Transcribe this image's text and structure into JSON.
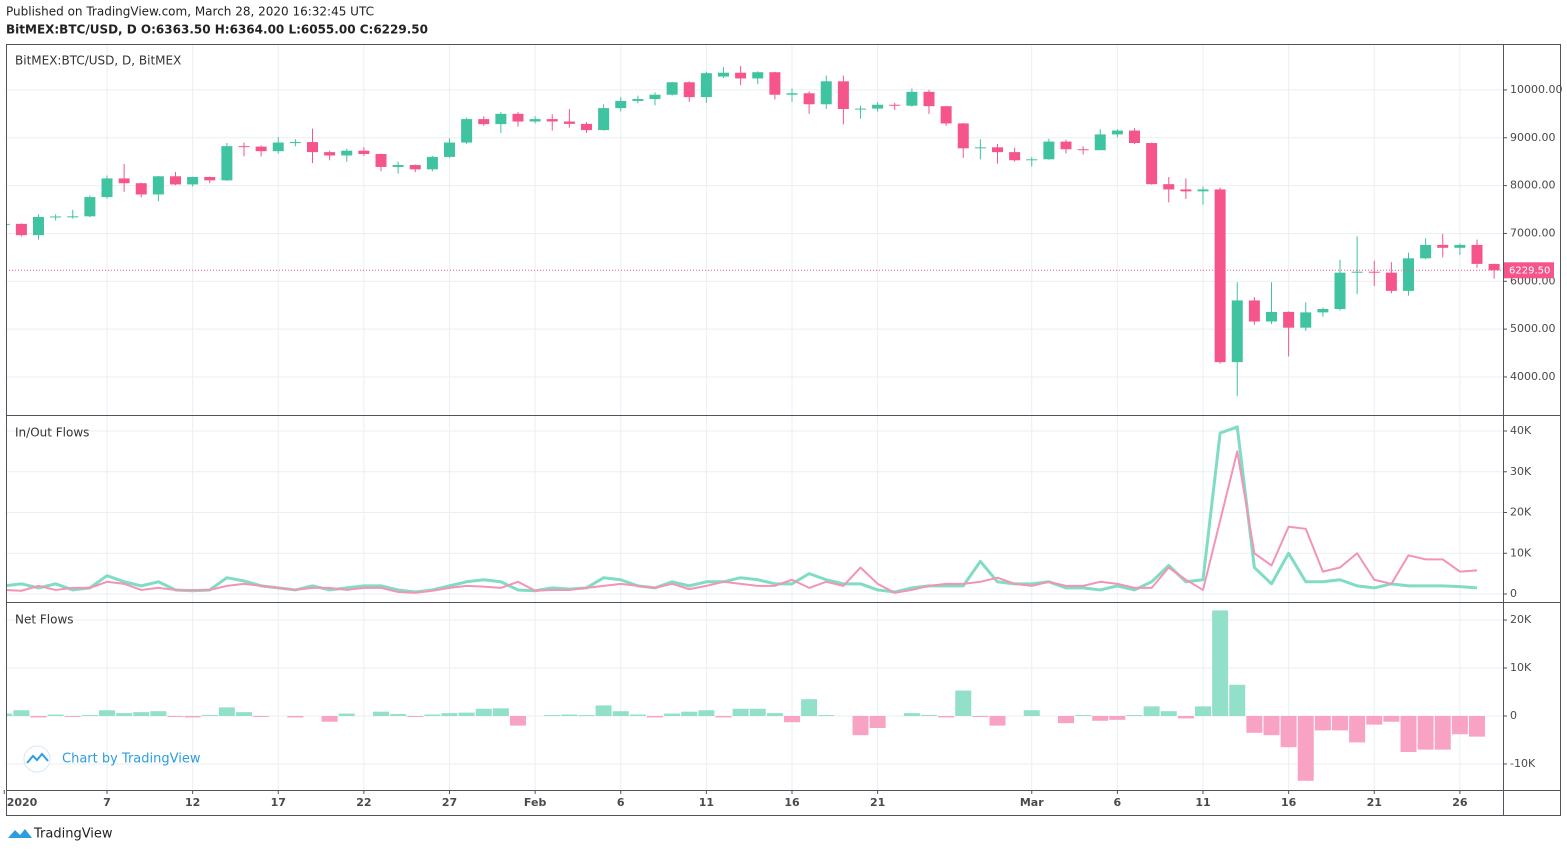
{
  "header": {
    "published": "Published on TradingView.com, March 28, 2020 16:32:45 UTC",
    "symbol_line": "BitMEX:BTC/USD, D  O:6363.50 H:6364.00 L:6055.00 C:6229.50"
  },
  "branding": {
    "chart_by": "Chart by TradingView",
    "footer": "TradingView"
  },
  "chart_data": [
    {
      "type": "candlestick",
      "title": "BitMEX:BTC/USD, D, BitMEX",
      "up_color": "#3fc3a0",
      "down_color": "#f5558a",
      "x": [
        "2020-01-01",
        "2020-01-02",
        "2020-01-03",
        "2020-01-04",
        "2020-01-05",
        "2020-01-06",
        "2020-01-07",
        "2020-01-08",
        "2020-01-09",
        "2020-01-10",
        "2020-01-11",
        "2020-01-12",
        "2020-01-13",
        "2020-01-14",
        "2020-01-15",
        "2020-01-16",
        "2020-01-17",
        "2020-01-18",
        "2020-01-19",
        "2020-01-20",
        "2020-01-21",
        "2020-01-22",
        "2020-01-23",
        "2020-01-24",
        "2020-01-25",
        "2020-01-26",
        "2020-01-27",
        "2020-01-28",
        "2020-01-29",
        "2020-01-30",
        "2020-01-31",
        "2020-02-01",
        "2020-02-02",
        "2020-02-03",
        "2020-02-04",
        "2020-02-05",
        "2020-02-06",
        "2020-02-07",
        "2020-02-08",
        "2020-02-09",
        "2020-02-10",
        "2020-02-11",
        "2020-02-12",
        "2020-02-13",
        "2020-02-14",
        "2020-02-15",
        "2020-02-16",
        "2020-02-17",
        "2020-02-18",
        "2020-02-19",
        "2020-02-20",
        "2020-02-21",
        "2020-02-22",
        "2020-02-23",
        "2020-02-24",
        "2020-02-25",
        "2020-02-26",
        "2020-02-27",
        "2020-02-28",
        "2020-02-29",
        "2020-03-01",
        "2020-03-02",
        "2020-03-03",
        "2020-03-04",
        "2020-03-05",
        "2020-03-06",
        "2020-03-07",
        "2020-03-08",
        "2020-03-09",
        "2020-03-10",
        "2020-03-11",
        "2020-03-12",
        "2020-03-13",
        "2020-03-14",
        "2020-03-15",
        "2020-03-16",
        "2020-03-17",
        "2020-03-18",
        "2020-03-19",
        "2020-03-20",
        "2020-03-21",
        "2020-03-22",
        "2020-03-23",
        "2020-03-24",
        "2020-03-25",
        "2020-03-26",
        "2020-03-27",
        "2020-03-28"
      ],
      "open": [
        7195,
        7200,
        6965,
        7345,
        7355,
        7358,
        7760,
        8150,
        8050,
        7815,
        8195,
        8025,
        8180,
        8110,
        8825,
        8815,
        8720,
        8900,
        8910,
        8700,
        8630,
        8730,
        8660,
        8390,
        8430,
        8340,
        8600,
        8900,
        9390,
        9285,
        9500,
        9340,
        9390,
        9340,
        9290,
        9160,
        9620,
        9770,
        9810,
        9900,
        10160,
        9850,
        10280,
        10360,
        10240,
        10370,
        9900,
        9930,
        9700,
        10180,
        9600,
        9610,
        9690,
        9670,
        9960,
        9660,
        9300,
        8780,
        8800,
        8700,
        8530,
        8550,
        8920,
        8760,
        8740,
        9070,
        9150,
        8890,
        8030,
        7920,
        7880,
        7920,
        4310,
        5600,
        5160,
        5360,
        5030,
        5350,
        5420,
        6180,
        6200,
        6180,
        5800,
        6480,
        6760,
        6700,
        6760,
        6363.5
      ],
      "high": [
        7255,
        7210,
        7400,
        7400,
        7495,
        7795,
        8210,
        8450,
        8060,
        8200,
        8285,
        8190,
        8190,
        8890,
        8900,
        8840,
        9010,
        8970,
        9190,
        8730,
        8770,
        8800,
        8670,
        8500,
        8440,
        8620,
        8990,
        9420,
        9450,
        9540,
        9540,
        9450,
        9490,
        9600,
        9330,
        9700,
        9850,
        9880,
        9950,
        10170,
        10180,
        10380,
        10480,
        10500,
        10390,
        10380,
        10030,
        9970,
        10300,
        10300,
        9670,
        9750,
        9730,
        10030,
        10000,
        9670,
        9310,
        8970,
        8870,
        8790,
        8600,
        8980,
        8960,
        8820,
        9180,
        9180,
        9200,
        8900,
        8180,
        8150,
        7980,
        7960,
        5980,
        5670,
        5980,
        5370,
        5560,
        5450,
        6450,
        6940,
        6430,
        6400,
        6600,
        6900,
        6990,
        6790,
        6870,
        6364
      ],
      "low": [
        7175,
        6935,
        6870,
        7270,
        7310,
        7340,
        7725,
        7870,
        7755,
        7675,
        8010,
        7980,
        8050,
        8100,
        8610,
        8610,
        8670,
        8820,
        8470,
        8530,
        8500,
        8620,
        8300,
        8250,
        8280,
        8300,
        8580,
        8870,
        9250,
        9100,
        9230,
        9300,
        9150,
        9210,
        9100,
        9150,
        9550,
        9720,
        9680,
        9880,
        9750,
        9730,
        10250,
        10100,
        10120,
        9800,
        9750,
        9500,
        9600,
        9280,
        9400,
        9550,
        9580,
        9650,
        9500,
        9250,
        8580,
        8550,
        8460,
        8500,
        8400,
        8540,
        8670,
        8650,
        8740,
        9010,
        8870,
        8020,
        7650,
        7720,
        7600,
        4280,
        3600,
        5090,
        5110,
        4430,
        4960,
        5260,
        5390,
        5730,
        5900,
        5750,
        5700,
        6460,
        6500,
        6550,
        6280,
        6055
      ],
      "close": [
        7200,
        6965,
        7345,
        7355,
        7358,
        7760,
        8150,
        8050,
        7815,
        8195,
        8025,
        8180,
        8110,
        8825,
        8815,
        8720,
        8900,
        8910,
        8700,
        8630,
        8730,
        8660,
        8390,
        8430,
        8340,
        8600,
        8900,
        9390,
        9285,
        9500,
        9340,
        9390,
        9340,
        9290,
        9160,
        9620,
        9770,
        9810,
        9900,
        10160,
        9850,
        10350,
        10360,
        10240,
        10370,
        9900,
        9930,
        9700,
        10180,
        9600,
        9610,
        9690,
        9670,
        9960,
        9660,
        9300,
        8780,
        8800,
        8700,
        8530,
        8550,
        8920,
        8760,
        8740,
        9070,
        9150,
        8890,
        8030,
        7920,
        7880,
        7920,
        4310,
        5600,
        5160,
        5360,
        5030,
        5350,
        5420,
        6180,
        6200,
        6180,
        5800,
        6480,
        6760,
        6700,
        6760,
        6363.5,
        6229.5
      ],
      "last_price": {
        "value": 6229.5,
        "label": "6229.50"
      },
      "ylim": [
        3205,
        10960
      ],
      "yticks": [
        {
          "value": 4000,
          "label": "4000.00"
        },
        {
          "value": 5000,
          "label": "5000.00"
        },
        {
          "value": 6000,
          "label": "6000.00"
        },
        {
          "value": 7000,
          "label": "7000.00"
        },
        {
          "value": 8000,
          "label": "8000.00"
        },
        {
          "value": 9000,
          "label": "9000.00"
        },
        {
          "value": 10000,
          "label": "10000.00"
        }
      ],
      "xticks": [
        {
          "value": "2020-01-01",
          "label": "2020"
        },
        {
          "value": "2020-01-07",
          "label": "7"
        },
        {
          "value": "2020-01-12",
          "label": "12"
        },
        {
          "value": "2020-01-17",
          "label": "17"
        },
        {
          "value": "2020-01-22",
          "label": "22"
        },
        {
          "value": "2020-01-27",
          "label": "27"
        },
        {
          "value": "2020-02-01",
          "label": "Feb"
        },
        {
          "value": "2020-02-06",
          "label": "6"
        },
        {
          "value": "2020-02-11",
          "label": "11"
        },
        {
          "value": "2020-02-16",
          "label": "16"
        },
        {
          "value": "2020-02-21",
          "label": "21"
        },
        {
          "value": "2020-03-01",
          "label": "Mar"
        },
        {
          "value": "2020-03-06",
          "label": "6"
        },
        {
          "value": "2020-03-11",
          "label": "11"
        },
        {
          "value": "2020-03-16",
          "label": "16"
        },
        {
          "value": "2020-03-21",
          "label": "21"
        },
        {
          "value": "2020-03-26",
          "label": "26"
        }
      ],
      "grid": true
    },
    {
      "type": "line",
      "title": "In/Out Flows",
      "series": [
        {
          "color": "#80dcc4",
          "width": 3,
          "values": [
            2000,
            2500,
            1500,
            2500,
            1000,
            1500,
            4500,
            3000,
            2000,
            3000,
            1000,
            800,
            1000,
            4000,
            3200,
            2000,
            1500,
            1000,
            2000,
            1000,
            1500,
            2000,
            2000,
            1000,
            500,
            1000,
            2000,
            3000,
            3500,
            3000,
            1000,
            800,
            1500,
            1200,
            1500,
            4000,
            3500,
            2000,
            1500,
            3000,
            2000,
            3000,
            3000,
            4000,
            3500,
            2500,
            2500,
            5000,
            3500,
            2500,
            2500,
            1000,
            500,
            1500,
            2000,
            2000,
            2000,
            8000,
            3000,
            2500,
            2500,
            3000,
            1500,
            1500,
            1000,
            2000,
            1000,
            3000,
            7000,
            3000,
            3500,
            39500,
            41000,
            6500,
            2500,
            10000,
            3000,
            3000,
            3500,
            2000,
            1500,
            2500,
            2000,
            2000,
            2000,
            1800,
            1500,
            null
          ]
        },
        {
          "color": "#f393b5",
          "width": 2,
          "values": [
            1000,
            800,
            2000,
            1000,
            1500,
            1500,
            3000,
            2500,
            1000,
            1500,
            1000,
            1000,
            1000,
            2000,
            2500,
            2000,
            1500,
            1000,
            1500,
            1500,
            1000,
            1500,
            1500,
            500,
            300,
            800,
            1500,
            2000,
            1800,
            1500,
            3000,
            800,
            1000,
            1000,
            1500,
            2000,
            2500,
            2000,
            1500,
            2500,
            1200,
            2000,
            3000,
            2500,
            2000,
            2000,
            3500,
            1500,
            3000,
            2000,
            6500,
            2500,
            300,
            1000,
            2000,
            2500,
            2500,
            3000,
            4000,
            2500,
            2000,
            3000,
            2000,
            2000,
            3000,
            2500,
            1500,
            1500,
            6500,
            3500,
            1000,
            18000,
            35000,
            10000,
            7000,
            16500,
            16000,
            5500,
            6500,
            10000,
            3500,
            2500,
            9500,
            8500,
            8500,
            5500,
            5800,
            null
          ]
        }
      ],
      "ylim": [
        -1960,
        43930
      ],
      "yticks": [
        0,
        {
          "value": 10000,
          "label": "10K"
        },
        {
          "value": 20000,
          "label": "20K"
        },
        {
          "value": 30000,
          "label": "30K"
        },
        {
          "value": 40000,
          "label": "40K"
        }
      ],
      "grid": true
    },
    {
      "type": "bar",
      "title": "Net Flows",
      "up_color": "#92e0ca",
      "down_color": "#f8a3c3",
      "values": [
        500,
        1200,
        -300,
        300,
        -200,
        200,
        1200,
        600,
        800,
        1000,
        -200,
        -300,
        200,
        1800,
        800,
        -200,
        0,
        -300,
        0,
        -1200,
        500,
        0,
        900,
        400,
        -200,
        300,
        600,
        700,
        1500,
        1600,
        -2000,
        0,
        200,
        300,
        200,
        2200,
        1000,
        300,
        -300,
        500,
        900,
        1200,
        -300,
        1500,
        1500,
        600,
        -1300,
        3500,
        200,
        0,
        -4000,
        -2500,
        0,
        600,
        200,
        -300,
        5300,
        -200,
        -2000,
        0,
        1200,
        0,
        -1500,
        200,
        -1000,
        -800,
        200,
        2000,
        1000,
        -500,
        2000,
        22000,
        6500,
        -3500,
        -4000,
        -6500,
        -13500,
        -3000,
        -3000,
        -5500,
        -1800,
        -1200,
        -7500,
        -7000,
        -7000,
        -3800,
        -4300,
        null
      ],
      "ylim": [
        -15420,
        23750
      ],
      "yticks": [
        {
          "value": -10000,
          "label": "-10K"
        },
        0,
        {
          "value": 10000,
          "label": "10K"
        },
        {
          "value": 20000,
          "label": "20K"
        }
      ],
      "grid": true
    }
  ]
}
